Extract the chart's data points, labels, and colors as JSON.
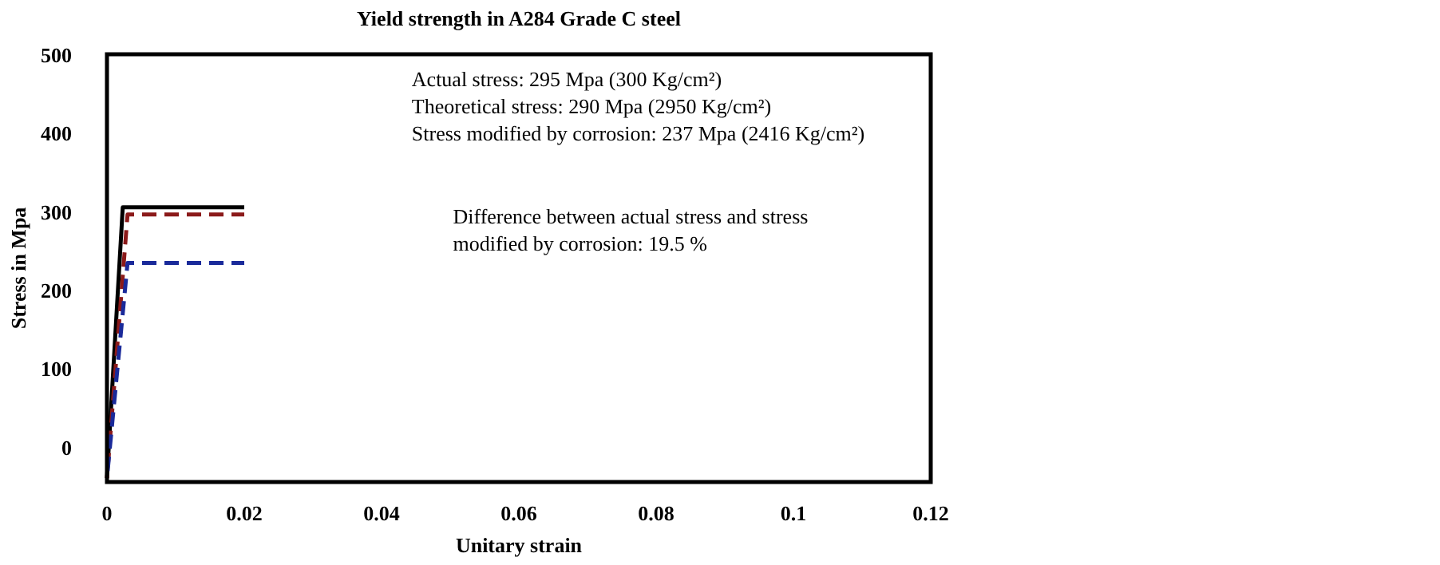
{
  "chart_data": {
    "type": "line",
    "title": "Yield strength in A284 Grade C steel",
    "xlabel": "Unitary strain",
    "ylabel": "Stress in Mpa",
    "xlim": [
      0,
      0.12
    ],
    "xticks": [
      0,
      0.02,
      0.04,
      0.06,
      0.08,
      0.1,
      0.12
    ],
    "ylim": [
      -45,
      500
    ],
    "yticks": [
      0,
      100,
      200,
      300,
      400,
      500
    ],
    "grid": false,
    "marker": "none",
    "series": [
      {
        "color": "#000000",
        "line_style": "solid",
        "x": [
          0,
          0.0023,
          0.02
        ],
        "values": [
          -40,
          305,
          305
        ]
      },
      {
        "color": "#8b1a1a",
        "line_style": "dashed",
        "x": [
          0,
          0.003,
          0.02
        ],
        "values": [
          -40,
          296,
          296
        ]
      },
      {
        "color": "#1a2a9a",
        "line_style": "dashed",
        "x": [
          0,
          0.003,
          0.02
        ],
        "values": [
          -40,
          234,
          234
        ]
      }
    ],
    "annotations": [
      "Actual stress: 295 Mpa (300 Kg/cm²)\nTheoretical stress: 290 Mpa (2950 Kg/cm²)\nStress modified by corrosion: 237 Mpa (2416 Kg/cm²)",
      "Difference between actual stress and stress\nmodified by corrosion: 19.5 %"
    ]
  }
}
